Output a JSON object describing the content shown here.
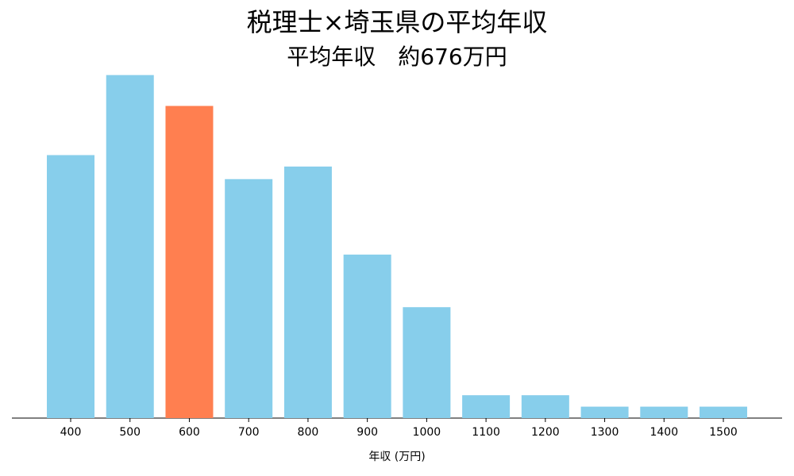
{
  "chart_data": {
    "type": "bar",
    "title": "税理士×埼玉県の平均年収",
    "subtitle": "平均年収　約676万円",
    "x_label": "年収 (万円)",
    "categories": [
      "400",
      "500",
      "600",
      "700",
      "800",
      "900",
      "1000",
      "1100",
      "1200",
      "1300",
      "1400",
      "1500"
    ],
    "values": [
      23,
      30,
      27.3,
      20.9,
      22,
      14.3,
      9.7,
      2,
      2,
      1,
      1,
      1
    ],
    "colors": [
      "#87ceeb",
      "#87ceeb",
      "#ff7f50",
      "#87ceeb",
      "#87ceeb",
      "#87ceeb",
      "#87ceeb",
      "#87ceeb",
      "#87ceeb",
      "#87ceeb",
      "#87ceeb",
      "#87ceeb"
    ],
    "ylim": [
      0,
      31.5
    ]
  }
}
